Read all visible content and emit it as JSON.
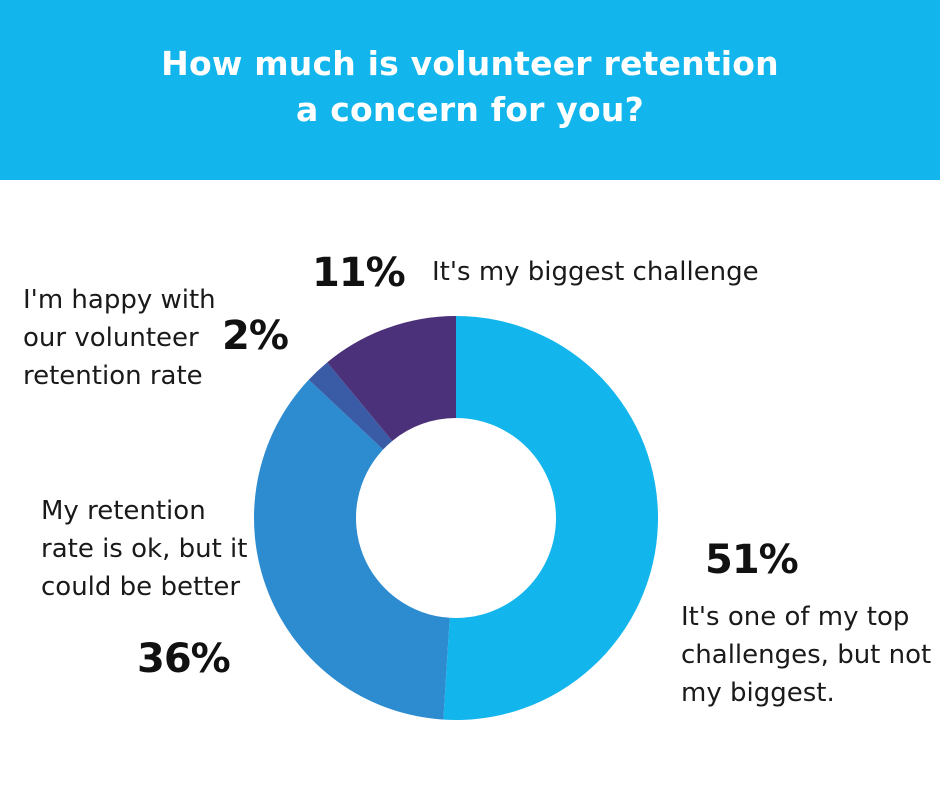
{
  "header": {
    "title_line1": "How much is volunteer retention",
    "title_line2": "a concern for you?",
    "background": "#12b5ec"
  },
  "chart_data": {
    "type": "pie",
    "donut": true,
    "title": "How much is volunteer retention a concern for you?",
    "slices": [
      {
        "label": "It's one of my top challenges, but not my biggest.",
        "value": 51,
        "value_label": "51%",
        "color": "#12b5ec"
      },
      {
        "label": "My retention rate is ok, but it could be better",
        "value": 36,
        "value_label": "36%",
        "color": "#2d8bd0"
      },
      {
        "label": "I'm happy with our volunteer retention rate",
        "value": 2,
        "value_label": "2%",
        "color": "#3a5ba6"
      },
      {
        "label": "It's my biggest challenge",
        "value": 11,
        "value_label": "11%",
        "color": "#4b3179"
      }
    ]
  },
  "labels": {
    "s0": {
      "pct": "51%",
      "lines": [
        "It's one of my top",
        "challenges, but not",
        "my biggest."
      ]
    },
    "s1": {
      "pct": "36%",
      "lines": [
        "My retention",
        "rate is ok, but it",
        "could be better"
      ]
    },
    "s2": {
      "pct": "2%",
      "lines": [
        "I'm happy with",
        "our volunteer",
        "retention rate"
      ]
    },
    "s3": {
      "pct": "11%",
      "lines": [
        "It's my biggest challenge"
      ]
    }
  }
}
